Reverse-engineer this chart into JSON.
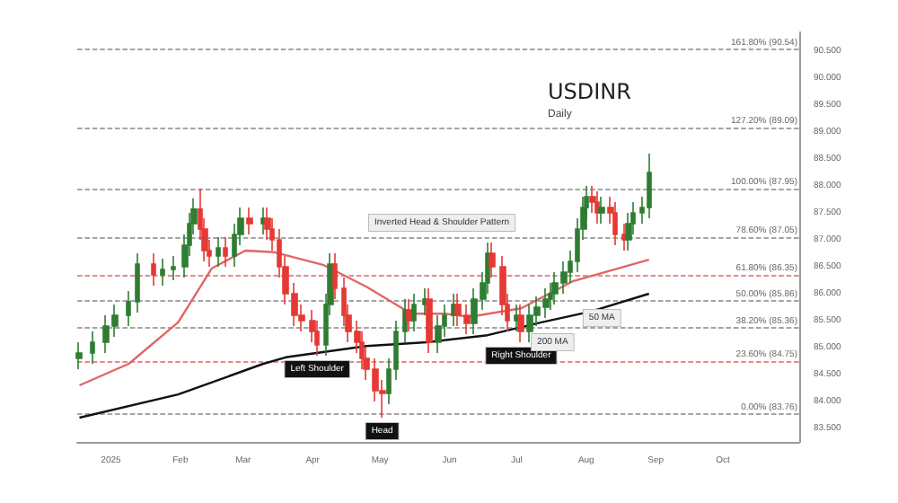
{
  "chart_data": {
    "type": "candlestick",
    "title": "USDINR",
    "subtitle": "Daily",
    "x": [
      "2024-12-18",
      "2024-12-24",
      "2024-12-30",
      "2025-01-03",
      "2025-01-09",
      "2025-01-13",
      "2025-01-20",
      "2025-01-24",
      "2025-01-29",
      "2025-02-03",
      "2025-02-05",
      "2025-02-07",
      "2025-02-10",
      "2025-02-12",
      "2025-02-14",
      "2025-02-18",
      "2025-02-21",
      "2025-02-25",
      "2025-02-28",
      "2025-03-04",
      "2025-03-10",
      "2025-03-12",
      "2025-03-14",
      "2025-03-17",
      "2025-03-20",
      "2025-03-24",
      "2025-03-27",
      "2025-04-01",
      "2025-04-03",
      "2025-04-07",
      "2025-04-09",
      "2025-04-11",
      "2025-04-15",
      "2025-04-17",
      "2025-04-21",
      "2025-04-23",
      "2025-04-25",
      "2025-04-29",
      "2025-05-02",
      "2025-05-05",
      "2025-05-08",
      "2025-05-12",
      "2025-05-14",
      "2025-05-16",
      "2025-05-21",
      "2025-05-23",
      "2025-05-27",
      "2025-05-30",
      "2025-06-03",
      "2025-06-05",
      "2025-06-09",
      "2025-06-12",
      "2025-06-16",
      "2025-06-18",
      "2025-06-20",
      "2025-06-25",
      "2025-06-27",
      "2025-07-01",
      "2025-07-03",
      "2025-07-07",
      "2025-07-10",
      "2025-07-14",
      "2025-07-16",
      "2025-07-18",
      "2025-07-22",
      "2025-07-25",
      "2025-07-28",
      "2025-07-31",
      "2025-08-01",
      "2025-08-04",
      "2025-08-06",
      "2025-08-08",
      "2025-08-12",
      "2025-08-14",
      "2025-08-18",
      "2025-08-20",
      "2025-08-22",
      "2025-08-26",
      "2025-08-29"
    ],
    "ohlc": [
      [
        84.8,
        85.1,
        84.6,
        84.9
      ],
      [
        84.9,
        85.3,
        84.7,
        85.1
      ],
      [
        85.1,
        85.6,
        84.9,
        85.4
      ],
      [
        85.4,
        85.8,
        85.2,
        85.6
      ],
      [
        85.6,
        86.05,
        85.4,
        85.85
      ],
      [
        85.85,
        86.75,
        85.65,
        86.55
      ],
      [
        86.55,
        86.75,
        86.15,
        86.35
      ],
      [
        86.35,
        86.65,
        86.15,
        86.45
      ],
      [
        86.45,
        86.7,
        86.25,
        86.5
      ],
      [
        86.5,
        87.1,
        86.3,
        86.9
      ],
      [
        86.9,
        87.5,
        86.7,
        87.3
      ],
      [
        87.3,
        87.77,
        87.1,
        87.57
      ],
      [
        87.57,
        87.95,
        87.0,
        87.2
      ],
      [
        87.2,
        87.4,
        86.6,
        86.8
      ],
      [
        86.8,
        87.0,
        86.5,
        86.7
      ],
      [
        86.7,
        87.05,
        86.5,
        86.85
      ],
      [
        86.85,
        87.05,
        86.5,
        86.7
      ],
      [
        86.7,
        87.3,
        86.5,
        87.1
      ],
      [
        87.1,
        87.6,
        86.9,
        87.4
      ],
      [
        87.4,
        87.6,
        87.1,
        87.3
      ],
      [
        87.3,
        87.6,
        87.1,
        87.4
      ],
      [
        87.4,
        87.6,
        87.0,
        87.2
      ],
      [
        87.2,
        87.4,
        86.8,
        87.0
      ],
      [
        87.0,
        87.2,
        86.3,
        86.5
      ],
      [
        86.5,
        86.7,
        85.8,
        86.0
      ],
      [
        86.0,
        86.2,
        85.4,
        85.6
      ],
      [
        85.6,
        85.8,
        85.3,
        85.5
      ],
      [
        85.5,
        85.7,
        85.1,
        85.3
      ],
      [
        85.3,
        85.5,
        84.85,
        85.05
      ],
      [
        85.05,
        86.0,
        84.85,
        85.8
      ],
      [
        85.8,
        86.75,
        85.6,
        86.55
      ],
      [
        86.55,
        86.75,
        85.9,
        86.1
      ],
      [
        86.1,
        86.3,
        85.4,
        85.6
      ],
      [
        85.6,
        85.8,
        85.1,
        85.3
      ],
      [
        85.3,
        85.5,
        84.9,
        85.1
      ],
      [
        85.1,
        85.3,
        84.6,
        84.8
      ],
      [
        84.8,
        85.0,
        84.4,
        84.6
      ],
      [
        84.6,
        84.8,
        84.0,
        84.2
      ],
      [
        84.2,
        84.4,
        83.7,
        84.15
      ],
      [
        84.15,
        84.8,
        83.95,
        84.6
      ],
      [
        84.6,
        85.5,
        84.4,
        85.3
      ],
      [
        85.3,
        85.9,
        85.1,
        85.7
      ],
      [
        85.7,
        85.9,
        85.3,
        85.5
      ],
      [
        85.5,
        86.0,
        85.3,
        85.8
      ],
      [
        85.8,
        86.1,
        85.6,
        85.9
      ],
      [
        85.9,
        86.1,
        84.9,
        85.1
      ],
      [
        85.1,
        85.6,
        84.9,
        85.4
      ],
      [
        85.4,
        85.8,
        85.2,
        85.6
      ],
      [
        85.6,
        86.0,
        85.4,
        85.8
      ],
      [
        85.8,
        86.0,
        85.4,
        85.6
      ],
      [
        85.6,
        85.8,
        85.25,
        85.45
      ],
      [
        85.45,
        86.1,
        85.25,
        85.9
      ],
      [
        85.9,
        86.4,
        85.7,
        86.2
      ],
      [
        86.2,
        86.95,
        86.0,
        86.75
      ],
      [
        86.75,
        86.95,
        86.3,
        86.5
      ],
      [
        86.5,
        86.7,
        85.6,
        85.8
      ],
      [
        85.8,
        86.0,
        85.3,
        85.5
      ],
      [
        85.5,
        85.8,
        85.3,
        85.6
      ],
      [
        85.6,
        85.8,
        85.1,
        85.3
      ],
      [
        85.3,
        85.8,
        85.1,
        85.6
      ],
      [
        85.6,
        85.95,
        85.4,
        85.75
      ],
      [
        85.75,
        86.1,
        85.55,
        85.9
      ],
      [
        85.9,
        86.2,
        85.7,
        86.0
      ],
      [
        86.0,
        86.4,
        85.8,
        86.2
      ],
      [
        86.2,
        86.6,
        86.0,
        86.4
      ],
      [
        86.4,
        86.8,
        86.2,
        86.6
      ],
      [
        86.6,
        87.4,
        86.4,
        87.2
      ],
      [
        87.2,
        87.8,
        87.0,
        87.6
      ],
      [
        87.6,
        88.0,
        87.4,
        87.8
      ],
      [
        87.8,
        88.0,
        87.5,
        87.7
      ],
      [
        87.7,
        87.9,
        87.3,
        87.5
      ],
      [
        87.5,
        87.8,
        87.3,
        87.6
      ],
      [
        87.6,
        87.8,
        87.3,
        87.5
      ],
      [
        87.5,
        87.7,
        86.9,
        87.1
      ],
      [
        87.1,
        87.3,
        86.8,
        87.0
      ],
      [
        87.0,
        87.5,
        86.8,
        87.3
      ],
      [
        87.3,
        87.7,
        87.1,
        87.5
      ],
      [
        87.5,
        87.8,
        87.3,
        87.6
      ],
      [
        87.6,
        88.6,
        87.4,
        88.25
      ]
    ],
    "series": [
      {
        "type": "line",
        "color": "#e06666",
        "x": [
          "2024-12-18",
          "2025-01-09",
          "2025-01-31",
          "2025-02-15",
          "2025-03-02",
          "2025-03-15",
          "2025-04-06",
          "2025-04-25",
          "2025-05-15",
          "2025-05-30",
          "2025-06-10",
          "2025-07-03",
          "2025-07-26",
          "2025-08-29"
        ],
        "values": [
          84.3,
          84.7,
          85.47,
          86.47,
          86.8,
          86.77,
          86.53,
          86.13,
          85.63,
          85.63,
          85.57,
          85.73,
          86.23,
          86.63
        ]
      },
      {
        "type": "line",
        "color": "#111111",
        "x": [
          "2024-12-18",
          "2025-01-31",
          "2025-03-10",
          "2025-03-20",
          "2025-04-25",
          "2025-05-22",
          "2025-06-18",
          "2025-07-12",
          "2025-08-03",
          "2025-08-29"
        ],
        "values": [
          83.7,
          84.13,
          84.7,
          84.82,
          85.03,
          85.1,
          85.23,
          85.47,
          85.67,
          86.0
        ]
      }
    ],
    "xlim": [
      "2024-12-17",
      "2025-11-04"
    ],
    "xticks": [
      {
        "value": "2025-01-01",
        "label": "2025"
      },
      {
        "value": "2025-02-01",
        "label": "Feb"
      },
      {
        "value": "2025-03-01",
        "label": "Mar"
      },
      {
        "value": "2025-04-01",
        "label": "Apr"
      },
      {
        "value": "2025-05-01",
        "label": "May"
      },
      {
        "value": "2025-06-01",
        "label": "Jun"
      },
      {
        "value": "2025-07-01",
        "label": "Jul"
      },
      {
        "value": "2025-08-01",
        "label": "Aug"
      },
      {
        "value": "2025-09-01",
        "label": "Sep"
      },
      {
        "value": "2025-10-01",
        "label": "Oct"
      }
    ],
    "ylim": [
      83.25,
      90.85
    ],
    "yticks": [
      {
        "value": 83.5,
        "label": "83.500"
      },
      {
        "value": 84,
        "label": "84.000"
      },
      {
        "value": 84.5,
        "label": "84.500"
      },
      {
        "value": 85,
        "label": "85.000"
      },
      {
        "value": 85.5,
        "label": "85.500"
      },
      {
        "value": 86,
        "label": "86.000"
      },
      {
        "value": 86.5,
        "label": "86.500"
      },
      {
        "value": 87,
        "label": "87.000"
      },
      {
        "value": 87.5,
        "label": "87.500"
      },
      {
        "value": 88,
        "label": "88.000"
      },
      {
        "value": 88.5,
        "label": "88.500"
      },
      {
        "value": 89,
        "label": "89.000"
      },
      {
        "value": 89.5,
        "label": "89.500"
      },
      {
        "value": 90,
        "label": "90.000"
      },
      {
        "value": 90.5,
        "label": "90.500"
      }
    ],
    "ref_lines": [
      {
        "axis": "y",
        "value": 90.54,
        "label": "161.80% (90.54)",
        "color": "#888888",
        "line_style": "dashed"
      },
      {
        "axis": "y",
        "value": 89.09,
        "label": "127.20% (89.09)",
        "color": "#888888",
        "line_style": "dashed"
      },
      {
        "axis": "y",
        "value": 87.95,
        "label": "100.00% (87.95)",
        "color": "#888888",
        "line_style": "dashed"
      },
      {
        "axis": "y",
        "value": 87.05,
        "label": "78.60% (87.05)",
        "color": "#888888",
        "line_style": "dashed"
      },
      {
        "axis": "y",
        "value": 86.35,
        "label": "61.80% (86.35)",
        "color": "#e06666",
        "line_style": "dashed"
      },
      {
        "axis": "y",
        "value": 85.86,
        "label": "50.00% (85.86)",
        "color": "#888888",
        "line_style": "dashed"
      },
      {
        "axis": "y",
        "value": 85.36,
        "label": "38.20% (85.36)",
        "color": "#888888",
        "line_style": "dashed"
      },
      {
        "axis": "y",
        "value": 84.75,
        "label": "23.60% (84.75)",
        "color": "#e06666",
        "line_style": "dashed"
      },
      {
        "axis": "y",
        "value": 83.76,
        "label": "0.00% (83.76)",
        "color": "#888888",
        "line_style": "dashed"
      }
    ],
    "annotations": [
      "Inverted Head & Shoulder Pattern",
      {
        "text": "Left Shoulder",
        "x": "2025-04-03",
        "y": 84.85
      },
      {
        "text": "Head",
        "x": "2025-05-02",
        "y": 83.7
      },
      {
        "text": "Right Shoulder",
        "x": "2025-07-03",
        "y": 85.1
      },
      {
        "text": "200 MA",
        "x": "2025-07-17",
        "y": 85.1
      },
      {
        "text": "50 MA",
        "x": "2025-08-08",
        "y": 85.55
      }
    ],
    "grid": false
  }
}
